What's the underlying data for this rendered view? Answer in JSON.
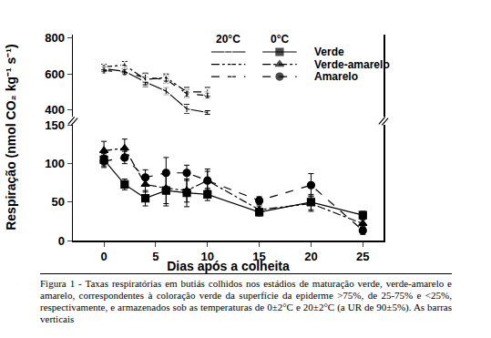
{
  "chart_data": {
    "type": "line",
    "xlabel": "Dias após a colheita",
    "ylabel": "Respiração (nmol CO₂ kg⁻¹ s⁻¹)",
    "xlim": [
      -3,
      27
    ],
    "xticks": [
      0,
      5,
      10,
      15,
      20,
      25
    ],
    "ylim": [
      0,
      150
    ],
    "yticks": [
      0,
      50,
      100,
      150
    ],
    "y2lim": [
      360,
      820
    ],
    "y2ticks": [
      400,
      600,
      800
    ],
    "legend_groups": [
      "20°C",
      "0°C"
    ],
    "series": [
      {
        "name": "Verde",
        "group": "20°C",
        "axis": "y2",
        "color": "#000000",
        "marker": "square-open",
        "line_style": "solid",
        "x": [
          0,
          2,
          4,
          6,
          8,
          10
        ],
        "values": [
          630,
          615,
          555,
          505,
          405,
          385
        ],
        "errors": [
          15,
          15,
          25,
          20,
          25,
          10
        ]
      },
      {
        "name": "Verde-amarelo",
        "group": "20°C",
        "axis": "y2",
        "color": "#000000",
        "marker": "triangle-up-open",
        "line_style": "dashdot",
        "x": [
          0,
          2,
          4,
          6,
          8,
          10
        ],
        "values": [
          640,
          650,
          570,
          580,
          500,
          500
        ],
        "errors": [
          15,
          20,
          30,
          20,
          25,
          25
        ]
      },
      {
        "name": "Amarelo",
        "group": "20°C",
        "axis": "y2",
        "color": "#000000",
        "marker": "circle-open",
        "line_style": "dash",
        "x": [
          0,
          2,
          4,
          6,
          8,
          10
        ],
        "values": [
          620,
          610,
          580,
          570,
          490,
          480
        ],
        "errors": [
          15,
          15,
          25,
          20,
          20,
          15
        ]
      },
      {
        "name": "Verde",
        "group": "0°C",
        "axis": "y",
        "color": "#000000",
        "marker": "square",
        "line_style": "solid",
        "x": [
          0,
          2,
          4,
          6,
          8,
          10,
          15,
          20,
          25
        ],
        "values": [
          105,
          73,
          55,
          65,
          62,
          60,
          37,
          50,
          33
        ],
        "errors": [
          8,
          7,
          10,
          20,
          18,
          8,
          5,
          10,
          5
        ]
      },
      {
        "name": "Verde-amarelo",
        "group": "0°C",
        "axis": "y",
        "color": "#000000",
        "marker": "triangle-up",
        "line_style": "dashdot",
        "x": [
          0,
          2,
          4,
          6,
          8,
          10,
          15,
          20,
          25
        ],
        "values": [
          117,
          120,
          73,
          68,
          65,
          78,
          40,
          48,
          22
        ],
        "errors": [
          12,
          12,
          10,
          20,
          15,
          12,
          5,
          10,
          5
        ]
      },
      {
        "name": "Amarelo",
        "group": "0°C",
        "axis": "y",
        "color": "#000000",
        "marker": "circle",
        "line_style": "dash",
        "x": [
          0,
          2,
          4,
          6,
          8,
          10,
          15,
          20,
          25
        ],
        "values": [
          103,
          108,
          82,
          88,
          88,
          78,
          52,
          72,
          13
        ],
        "errors": [
          8,
          8,
          10,
          20,
          10,
          15,
          5,
          15,
          5
        ]
      }
    ],
    "caption": "Figura 1 - Taxas respiratórias em butiás colhidos nos estádios de maturação verde, verde-amarelo e amarelo, correspondentes à coloração verde da superfície da epiderme >75%, de 25-75% e <25%, respectivamente, e armazenados sob as temperaturas de 0±2°C e 20±2°C (a UR de 90±5%). As barras verticais"
  }
}
